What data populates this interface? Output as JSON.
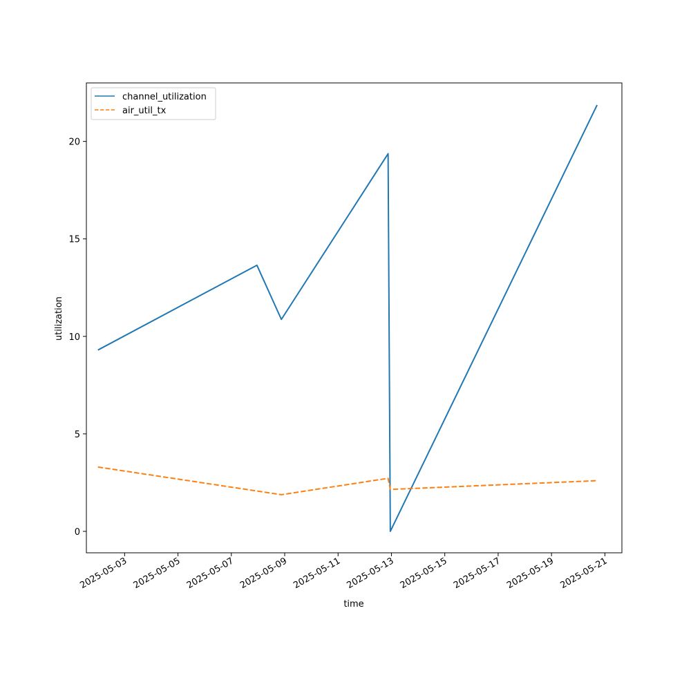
{
  "chart_data": {
    "type": "line",
    "xlabel": "time",
    "ylabel": "utilization",
    "x_type": "date",
    "xlim": [
      "2025-05-01T13:36:00",
      "2025-05-21T15:19:00"
    ],
    "ylim": [
      -1.1,
      23.0
    ],
    "x_ticks": [
      "2025-05-03",
      "2025-05-05",
      "2025-05-07",
      "2025-05-09",
      "2025-05-11",
      "2025-05-13",
      "2025-05-15",
      "2025-05-17",
      "2025-05-19",
      "2025-05-21"
    ],
    "y_ticks": [
      0,
      5,
      10,
      15,
      20
    ],
    "grid": false,
    "legend_position": "upper-left",
    "series": [
      {
        "name": "channel_utilization",
        "color": "#1f77b4",
        "style": "solid",
        "points": [
          {
            "x": "2025-05-02T00:00:00",
            "y": 9.3
          },
          {
            "x": "2025-05-07T23:00:00",
            "y": 13.65
          },
          {
            "x": "2025-05-08T21:00:00",
            "y": 10.87
          },
          {
            "x": "2025-05-12T21:00:00",
            "y": 19.37
          },
          {
            "x": "2025-05-12T23:00:00",
            "y": 0.0
          },
          {
            "x": "2025-05-20T17:00:00",
            "y": 21.87
          }
        ]
      },
      {
        "name": "air_util_tx",
        "color": "#ff7f0e",
        "style": "dashed",
        "points": [
          {
            "x": "2025-05-02T00:00:00",
            "y": 3.3
          },
          {
            "x": "2025-05-08T21:00:00",
            "y": 1.88
          },
          {
            "x": "2025-05-12T21:00:00",
            "y": 2.72
          },
          {
            "x": "2025-05-12T23:00:00",
            "y": 2.15
          },
          {
            "x": "2025-05-20T17:00:00",
            "y": 2.6
          }
        ]
      }
    ]
  }
}
